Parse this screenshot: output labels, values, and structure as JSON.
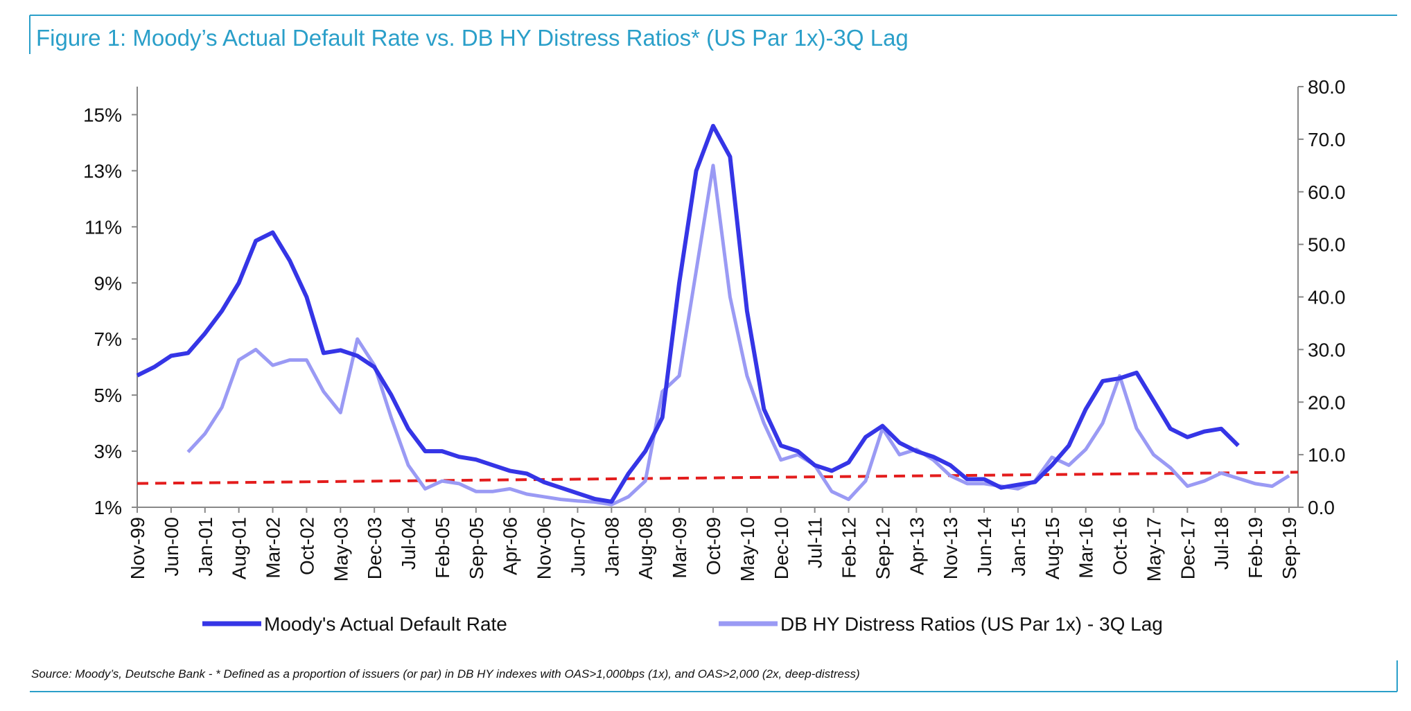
{
  "chart_data": {
    "type": "line",
    "title": "Figure 1: Moody’s Actual Default Rate vs. DB HY Distress Ratios* (US Par 1x)-3Q Lag",
    "source": "Source: Moody’s, Deutsche Bank - * Defined as a proportion of issuers (or par) in DB HY indexes with OAS>1,000bps (1x), and OAS>2,000 (2x, deep-distress)",
    "categories": [
      "Nov-99",
      null,
      "Jun-00",
      null,
      "Jan-01",
      null,
      "Aug-01",
      null,
      "Mar-02",
      null,
      "Oct-02",
      null,
      "May-03",
      null,
      "Dec-03",
      null,
      "Jul-04",
      null,
      "Feb-05",
      null,
      "Sep-05",
      null,
      "Apr-06",
      null,
      "Nov-06",
      null,
      "Jun-07",
      null,
      "Jan-08",
      null,
      "Aug-08",
      null,
      "Mar-09",
      null,
      "Oct-09",
      null,
      "May-10",
      null,
      "Dec-10",
      null,
      "Jul-11",
      null,
      "Feb-12",
      null,
      "Sep-12",
      null,
      "Apr-13",
      null,
      "Nov-13",
      null,
      "Jun-14",
      null,
      "Jan-15",
      null,
      "Aug-15",
      null,
      "Mar-16",
      null,
      "Oct-16",
      null,
      "May-17",
      null,
      "Dec-17",
      null,
      "Jul-18",
      null,
      "Feb-19",
      null,
      "Sep-19"
    ],
    "series": [
      {
        "name": "Moody's Actual Default Rate",
        "color": "#3535e6",
        "axis": "y",
        "values": [
          5.7,
          6.0,
          6.4,
          6.5,
          7.2,
          8.0,
          9.0,
          10.5,
          10.8,
          9.8,
          8.5,
          6.5,
          6.6,
          6.4,
          6.0,
          5.0,
          3.8,
          3.0,
          3.0,
          2.8,
          2.7,
          2.5,
          2.3,
          2.2,
          1.9,
          1.7,
          1.5,
          1.3,
          1.2,
          2.2,
          3.0,
          4.2,
          9.0,
          13.0,
          14.6,
          13.5,
          8.0,
          4.5,
          3.2,
          3.0,
          2.5,
          2.3,
          2.6,
          3.5,
          3.9,
          3.3,
          3.0,
          2.8,
          2.5,
          2.0,
          2.0,
          1.7,
          1.8,
          1.9,
          2.5,
          3.2,
          4.5,
          5.5,
          5.6,
          5.8,
          4.8,
          3.8,
          3.5,
          3.7,
          3.8,
          3.2,
          null,
          null,
          null
        ]
      },
      {
        "name": "DB HY Distress Ratios (US Par 1x) - 3Q Lag",
        "color": "#9a9af4",
        "axis": "y2",
        "values": [
          null,
          null,
          null,
          10.5,
          14,
          19,
          28,
          30,
          27,
          28,
          28,
          22,
          18,
          32,
          27,
          17,
          8,
          3.5,
          5,
          4.5,
          3,
          3,
          3.5,
          2.5,
          2,
          1.5,
          1.2,
          1,
          0.5,
          2,
          5,
          22,
          25,
          45,
          65,
          40,
          25,
          16,
          9,
          10,
          8,
          3,
          1.5,
          5,
          15,
          10,
          11,
          9,
          6,
          4.5,
          4.5,
          4,
          3.5,
          5,
          9.5,
          8,
          11,
          16,
          25,
          15,
          10,
          7.5,
          4,
          5,
          6.5,
          5.5,
          4.5,
          4,
          6
        ]
      }
    ],
    "trend_line": {
      "values": [
        1.85,
        2.25
      ],
      "color": "#e31d1d"
    },
    "ylim": [
      1,
      16
    ],
    "yticks": [
      {
        "value": 1,
        "label": "1%"
      },
      {
        "value": 3,
        "label": "3%"
      },
      {
        "value": 5,
        "label": "5%"
      },
      {
        "value": 7,
        "label": "7%"
      },
      {
        "value": 9,
        "label": "9%"
      },
      {
        "value": 11,
        "label": "11%"
      },
      {
        "value": 13,
        "label": "13%"
      },
      {
        "value": 15,
        "label": "15%"
      }
    ],
    "y2lim": [
      0,
      80
    ],
    "y2ticks": [
      {
        "value": 0,
        "label": "0.0"
      },
      {
        "value": 10,
        "label": "10.0"
      },
      {
        "value": 20,
        "label": "20.0"
      },
      {
        "value": 30,
        "label": "30.0"
      },
      {
        "value": 40,
        "label": "40.0"
      },
      {
        "value": 50,
        "label": "50.0"
      },
      {
        "value": 60,
        "label": "60.0"
      },
      {
        "value": 70,
        "label": "70.0"
      },
      {
        "value": 80,
        "label": "80.0"
      }
    ]
  }
}
